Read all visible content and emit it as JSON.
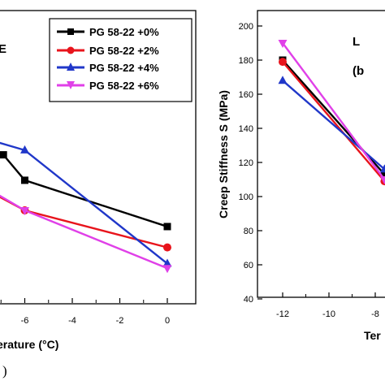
{
  "chart_data": [
    {
      "type": "line",
      "panel": "left",
      "xlabel": "erature (°C)",
      "xlim": [
        -8,
        1
      ],
      "ylim": [
        0,
        10
      ],
      "x_ticks": [
        "-6",
        "-4",
        "-2",
        "0"
      ],
      "legend_position": "top-right",
      "series": [
        {
          "name": "PG 58-22 +0%",
          "color": "#000000",
          "marker": "square",
          "x": [
            -6.9,
            -6,
            0
          ],
          "y": [
            6.4,
            5.3,
            3.3
          ]
        },
        {
          "name": "PG 58-22 +2%",
          "color": "#e8141c",
          "marker": "circle",
          "x": [
            -8,
            -6,
            0
          ],
          "y": [
            5.1,
            4.0,
            2.4
          ]
        },
        {
          "name": "PG 58-22 +4%",
          "color": "#2037c9",
          "marker": "triangle-up",
          "x": [
            -8,
            -6,
            0
          ],
          "y": [
            7.2,
            6.6,
            1.7
          ]
        },
        {
          "name": "PG 58-22 +6%",
          "color": "#e040e8",
          "marker": "triangle-down",
          "x": [
            -8,
            -6,
            0
          ],
          "y": [
            5.2,
            4.0,
            1.5
          ]
        }
      ],
      "corner_text": "E",
      "caption_text": ")"
    },
    {
      "type": "line",
      "panel": "right",
      "ylabel": "Creep Stiffness S (MPa)",
      "xlabel": "Ter",
      "xlim": [
        -12.5,
        -7.6
      ],
      "ylim": [
        40,
        200
      ],
      "y_ticks": [
        "40",
        "60",
        "80",
        "100",
        "120",
        "140",
        "160",
        "180",
        "200"
      ],
      "x_ticks": [
        "-12",
        "-10",
        "-8"
      ],
      "series": [
        {
          "color": "#000000",
          "marker": "square",
          "x": [
            -12,
            -7.6
          ],
          "y": [
            180,
            113
          ]
        },
        {
          "color": "#e8141c",
          "marker": "circle",
          "x": [
            -12,
            -7.6
          ],
          "y": [
            179,
            109
          ]
        },
        {
          "color": "#2037c9",
          "marker": "triangle-up",
          "x": [
            -12,
            -7.6
          ],
          "y": [
            168,
            116
          ]
        },
        {
          "color": "#e040e8",
          "marker": "triangle-down",
          "x": [
            -12,
            -7.6
          ],
          "y": [
            190,
            110
          ]
        }
      ],
      "corner_text": "L",
      "panel_label": "(b"
    }
  ]
}
